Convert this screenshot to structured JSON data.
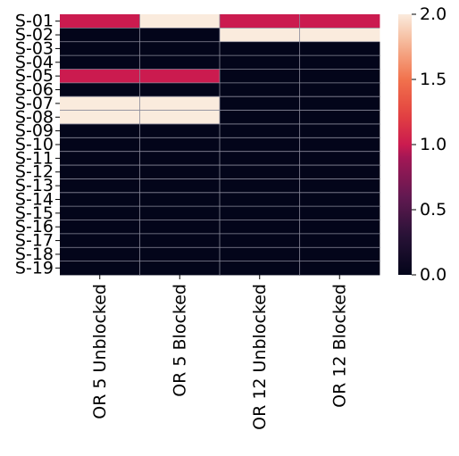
{
  "chart_data": {
    "type": "heatmap",
    "rows": [
      "S-01",
      "S-02",
      "S-03",
      "S-04",
      "S-05",
      "S-06",
      "S-07",
      "S-08",
      "S-09",
      "S-10",
      "S-11",
      "S-12",
      "S-13",
      "S-14",
      "S-15",
      "S-16",
      "S-17",
      "S-18",
      "S-19"
    ],
    "columns": [
      "OR 5 Unblocked",
      "OR 5 Blocked",
      "OR 12 Unblocked",
      "OR 12 Blocked"
    ],
    "values": [
      [
        1,
        2,
        1,
        1
      ],
      [
        0,
        0,
        2,
        2
      ],
      [
        0,
        0,
        0,
        0
      ],
      [
        0,
        0,
        0,
        0
      ],
      [
        1,
        1,
        0,
        0
      ],
      [
        0,
        0,
        0,
        0
      ],
      [
        2,
        2,
        0,
        0
      ],
      [
        2,
        2,
        0,
        0
      ],
      [
        0,
        0,
        0,
        0
      ],
      [
        0,
        0,
        0,
        0
      ],
      [
        0,
        0,
        0,
        0
      ],
      [
        0,
        0,
        0,
        0
      ],
      [
        0,
        0,
        0,
        0
      ],
      [
        0,
        0,
        0,
        0
      ],
      [
        0,
        0,
        0,
        0
      ],
      [
        0,
        0,
        0,
        0
      ],
      [
        0,
        0,
        0,
        0
      ],
      [
        0,
        0,
        0,
        0
      ],
      [
        0,
        0,
        0,
        0
      ]
    ],
    "colorbar": {
      "range": [
        0,
        2
      ],
      "ticks": [
        "0.0",
        "0.5",
        "1.0",
        "1.5",
        "2.0"
      ]
    },
    "grid": true,
    "colormap": "rocket",
    "colors": {
      "low": "#03051a",
      "mid": "#cb1b4f",
      "high": "#faebdd",
      "gridline": "#8a8a9a"
    }
  }
}
